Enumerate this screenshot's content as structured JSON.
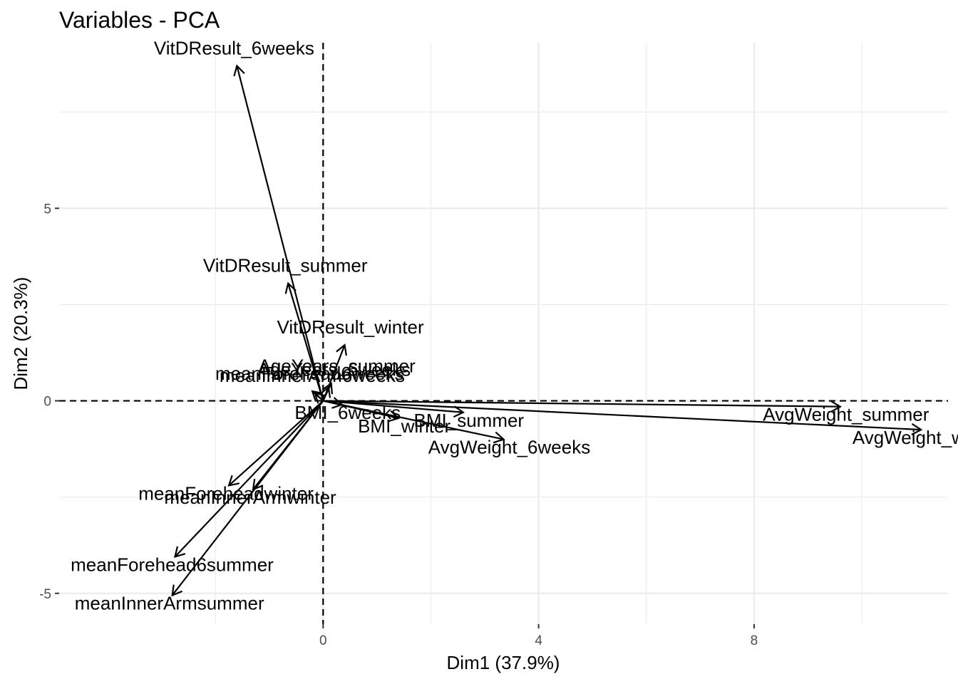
{
  "chart_data": {
    "type": "scatter",
    "subtype": "pca-variable-loadings-arrows",
    "title": "Variables - PCA",
    "xlabel": "Dim1 (37.9%)",
    "ylabel": "Dim2 (20.3%)",
    "xlim": [
      -4.9,
      11.6
    ],
    "ylim": [
      -5.8,
      9.3
    ],
    "xticks": [
      0,
      4,
      8
    ],
    "yticks": [
      -5,
      0,
      5
    ],
    "grid": true,
    "legend": "none",
    "arrow_color": "#000000",
    "variables": [
      {
        "name": "VitDResult_6weeks",
        "x": -1.6,
        "y": 8.7
      },
      {
        "name": "VitDResult_summer",
        "x": -0.65,
        "y": 3.05
      },
      {
        "name": "VitDResult_winter",
        "x": 0.4,
        "y": 1.45
      },
      {
        "name": "AgeYears_summer",
        "x": 0.15,
        "y": 0.45
      },
      {
        "name": "AgeYears_6weeks",
        "x": 0.1,
        "y": 0.35
      },
      {
        "name": "meanForehead6weeks",
        "x": -0.2,
        "y": 0.25
      },
      {
        "name": "meanInnerArm6weeks",
        "x": -0.15,
        "y": 0.2
      },
      {
        "name": "BMI_6weeks",
        "x": 0.35,
        "y": -0.1
      },
      {
        "name": "BMI_summer",
        "x": 2.6,
        "y": -0.3
      },
      {
        "name": "BMI_winter",
        "x": 1.4,
        "y": -0.45
      },
      {
        "name": "AvgWeight_summer",
        "x": 9.6,
        "y": -0.15
      },
      {
        "name": "AvgWeight_winter",
        "x": 11.1,
        "y": -0.75
      },
      {
        "name": "AvgWeight_6weeks",
        "x": 3.35,
        "y": -1.0
      },
      {
        "name": "meanForeheadwinter",
        "x": -1.75,
        "y": -2.2
      },
      {
        "name": "meanInnerArmwinter",
        "x": -1.3,
        "y": -2.3
      },
      {
        "name": "meanForehead6summer",
        "x": -2.75,
        "y": -4.05
      },
      {
        "name": "meanInnerArmsummer",
        "x": -2.8,
        "y": -5.05
      }
    ]
  }
}
